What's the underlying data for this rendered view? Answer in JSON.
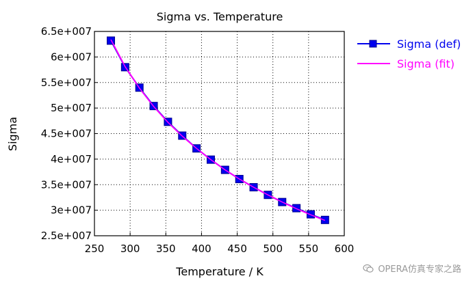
{
  "chart_data": {
    "type": "line",
    "title": "Sigma vs. Temperature",
    "xlabel": "Temperature / K",
    "ylabel": "Sigma",
    "xlim": [
      250,
      600
    ],
    "ylim": [
      25000000,
      65000000
    ],
    "x_ticks": [
      250,
      300,
      350,
      400,
      450,
      500,
      550,
      600
    ],
    "x_tick_labels": [
      "250",
      "300",
      "350",
      "400",
      "450",
      "500",
      "550",
      "600"
    ],
    "y_ticks": [
      25000000,
      30000000,
      35000000,
      40000000,
      45000000,
      50000000,
      55000000,
      60000000,
      65000000
    ],
    "y_tick_labels": [
      "2.5e+007",
      "3e+007",
      "3.5e+007",
      "4e+007",
      "4.5e+007",
      "5e+007",
      "5.5e+007",
      "6e+007",
      "6.5e+007"
    ],
    "grid": true,
    "grid_style": "dotted",
    "legend_position": "right",
    "x": [
      273,
      293,
      313,
      333,
      353,
      373,
      393,
      413,
      433,
      453,
      473,
      493,
      513,
      533,
      553,
      573
    ],
    "series": [
      {
        "name": "Sigma (def)",
        "color": "#0000ee",
        "marker": "square",
        "values": [
          63200000,
          58000000,
          54000000,
          50400000,
          47300000,
          44600000,
          42100000,
          39900000,
          37900000,
          36100000,
          34500000,
          33000000,
          31600000,
          30400000,
          29200000,
          28100000
        ]
      },
      {
        "name": "Sigma (fit)",
        "color": "#ff00ff",
        "marker": "none",
        "values": [
          63400000,
          58100000,
          53900000,
          50300000,
          47200000,
          44500000,
          42100000,
          39900000,
          37900000,
          36100000,
          34500000,
          33000000,
          31600000,
          30300000,
          29100000,
          28000000
        ]
      }
    ]
  },
  "watermark": {
    "text": "OPERA仿真专家之路",
    "icon": "wechat-icon"
  }
}
